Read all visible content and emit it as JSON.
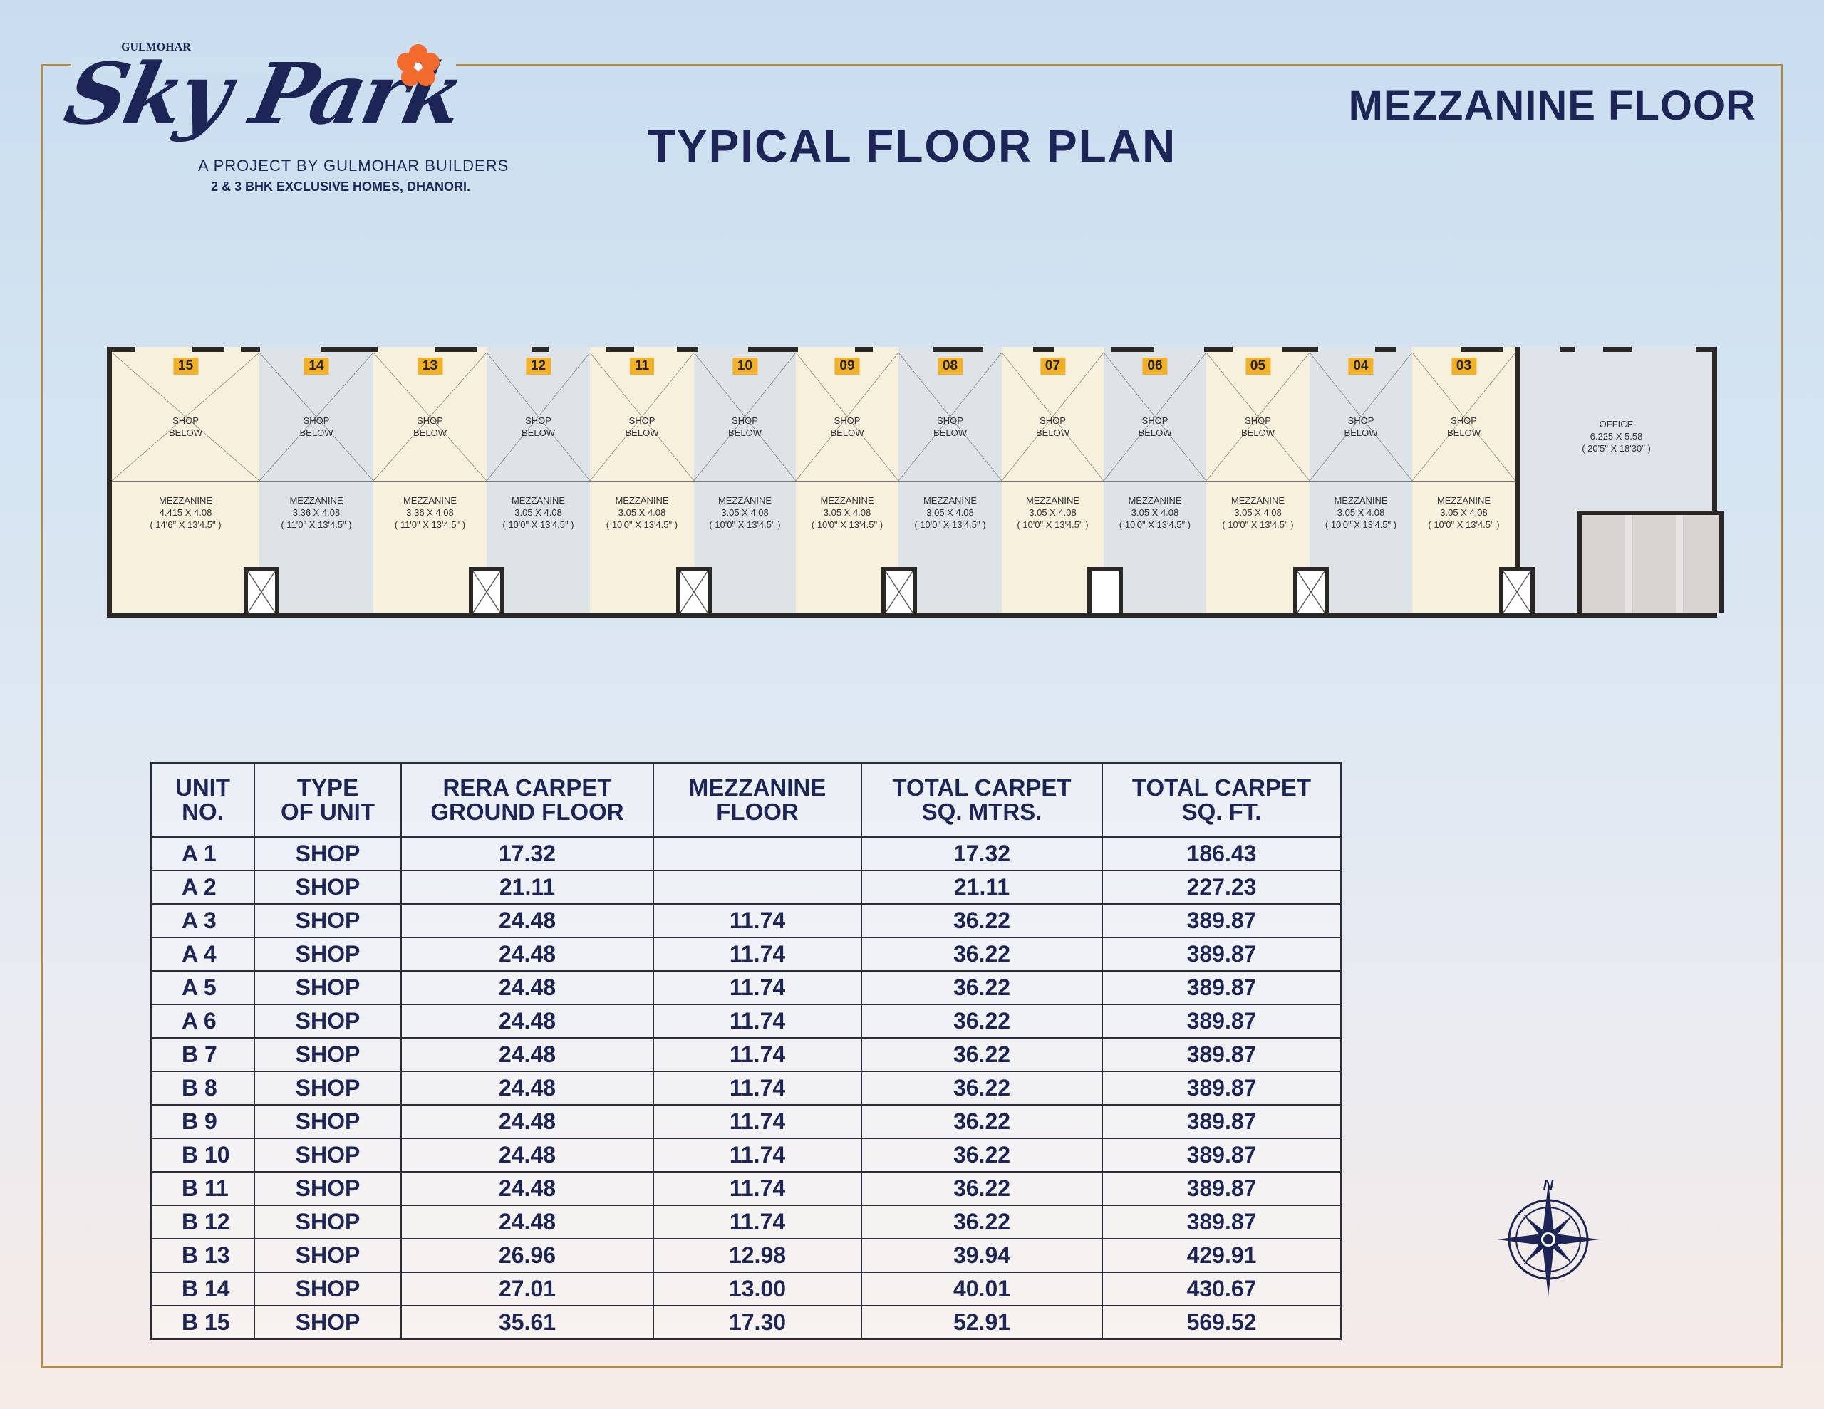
{
  "brand": {
    "top": "GULMOHAR",
    "script": "Sky Park",
    "line1": "A PROJECT BY GULMOHAR BUILDERS",
    "line2": "2 & 3 BHK EXCLUSIVE HOMES, DHANORI."
  },
  "title": "TYPICAL FLOOR PLAN",
  "subtitle": "MEZZANINE FLOOR",
  "colors": {
    "navy": "#1c2556",
    "gold": "#b08a4a",
    "badge": "#f0b02a",
    "unit_cream": "#f6f0dc",
    "unit_grey": "#dde3e6"
  },
  "plan": {
    "shop_below": [
      "SHOP",
      "BELOW"
    ],
    "mezz_label": "MEZZANINE",
    "units": [
      {
        "no": "15",
        "dim": "4.415 X 4.08",
        "ft": "( 14'6\" X 13'4.5\" )"
      },
      {
        "no": "14",
        "dim": "3.36 X 4.08",
        "ft": "( 11'0\" X 13'4.5\" )"
      },
      {
        "no": "13",
        "dim": "3.36 X 4.08",
        "ft": "( 11'0\" X 13'4.5\" )"
      },
      {
        "no": "12",
        "dim": "3.05 X 4.08",
        "ft": "( 10'0\" X 13'4.5\" )"
      },
      {
        "no": "11",
        "dim": "3.05 X 4.08",
        "ft": "( 10'0\" X 13'4.5\" )"
      },
      {
        "no": "10",
        "dim": "3.05 X 4.08",
        "ft": "( 10'0\" X 13'4.5\" )"
      },
      {
        "no": "09",
        "dim": "3.05 X 4.08",
        "ft": "( 10'0\" X 13'4.5\" )"
      },
      {
        "no": "08",
        "dim": "3.05 X 4.08",
        "ft": "( 10'0\" X 13'4.5\" )"
      },
      {
        "no": "07",
        "dim": "3.05 X 4.08",
        "ft": "( 10'0\" X 13'4.5\" )"
      },
      {
        "no": "06",
        "dim": "3.05 X 4.08",
        "ft": "( 10'0\" X 13'4.5\" )"
      },
      {
        "no": "05",
        "dim": "3.05 X 4.08",
        "ft": "( 10'0\" X 13'4.5\" )"
      },
      {
        "no": "04",
        "dim": "3.05 X 4.08",
        "ft": "( 10'0\" X 13'4.5\" )"
      },
      {
        "no": "03",
        "dim": "3.05 X 4.08",
        "ft": "( 10'0\" X 13'4.5\" )"
      }
    ],
    "office": {
      "label": "OFFICE",
      "dim": "6.225 X 5.58",
      "ft": "( 20'5\" X 18'30\" )"
    }
  },
  "table": {
    "headers": [
      [
        "UNIT",
        "NO."
      ],
      [
        "TYPE",
        "OF UNIT"
      ],
      [
        "RERA CARPET",
        "GROUND FLOOR"
      ],
      [
        "MEZZANINE",
        "FLOOR"
      ],
      [
        "TOTAL CARPET",
        "SQ. MTRS."
      ],
      [
        "TOTAL CARPET",
        "SQ. FT."
      ]
    ],
    "rows": [
      [
        "A 1",
        "SHOP",
        "17.32",
        "",
        "17.32",
        "186.43"
      ],
      [
        "A 2",
        "SHOP",
        "21.11",
        "",
        "21.11",
        "227.23"
      ],
      [
        "A 3",
        "SHOP",
        "24.48",
        "11.74",
        "36.22",
        "389.87"
      ],
      [
        "A 4",
        "SHOP",
        "24.48",
        "11.74",
        "36.22",
        "389.87"
      ],
      [
        "A 5",
        "SHOP",
        "24.48",
        "11.74",
        "36.22",
        "389.87"
      ],
      [
        "A 6",
        "SHOP",
        "24.48",
        "11.74",
        "36.22",
        "389.87"
      ],
      [
        "B 7",
        "SHOP",
        "24.48",
        "11.74",
        "36.22",
        "389.87"
      ],
      [
        "B 8",
        "SHOP",
        "24.48",
        "11.74",
        "36.22",
        "389.87"
      ],
      [
        "B 9",
        "SHOP",
        "24.48",
        "11.74",
        "36.22",
        "389.87"
      ],
      [
        "B 10",
        "SHOP",
        "24.48",
        "11.74",
        "36.22",
        "389.87"
      ],
      [
        "B 11",
        "SHOP",
        "24.48",
        "11.74",
        "36.22",
        "389.87"
      ],
      [
        "B 12",
        "SHOP",
        "24.48",
        "11.74",
        "36.22",
        "389.87"
      ],
      [
        "B 13",
        "SHOP",
        "26.96",
        "12.98",
        "39.94",
        "429.91"
      ],
      [
        "B 14",
        "SHOP",
        "27.01",
        "13.00",
        "40.01",
        "430.67"
      ],
      [
        "B 15",
        "SHOP",
        "35.61",
        "17.30",
        "52.91",
        "569.52"
      ]
    ]
  },
  "compass": {
    "north": "N"
  }
}
